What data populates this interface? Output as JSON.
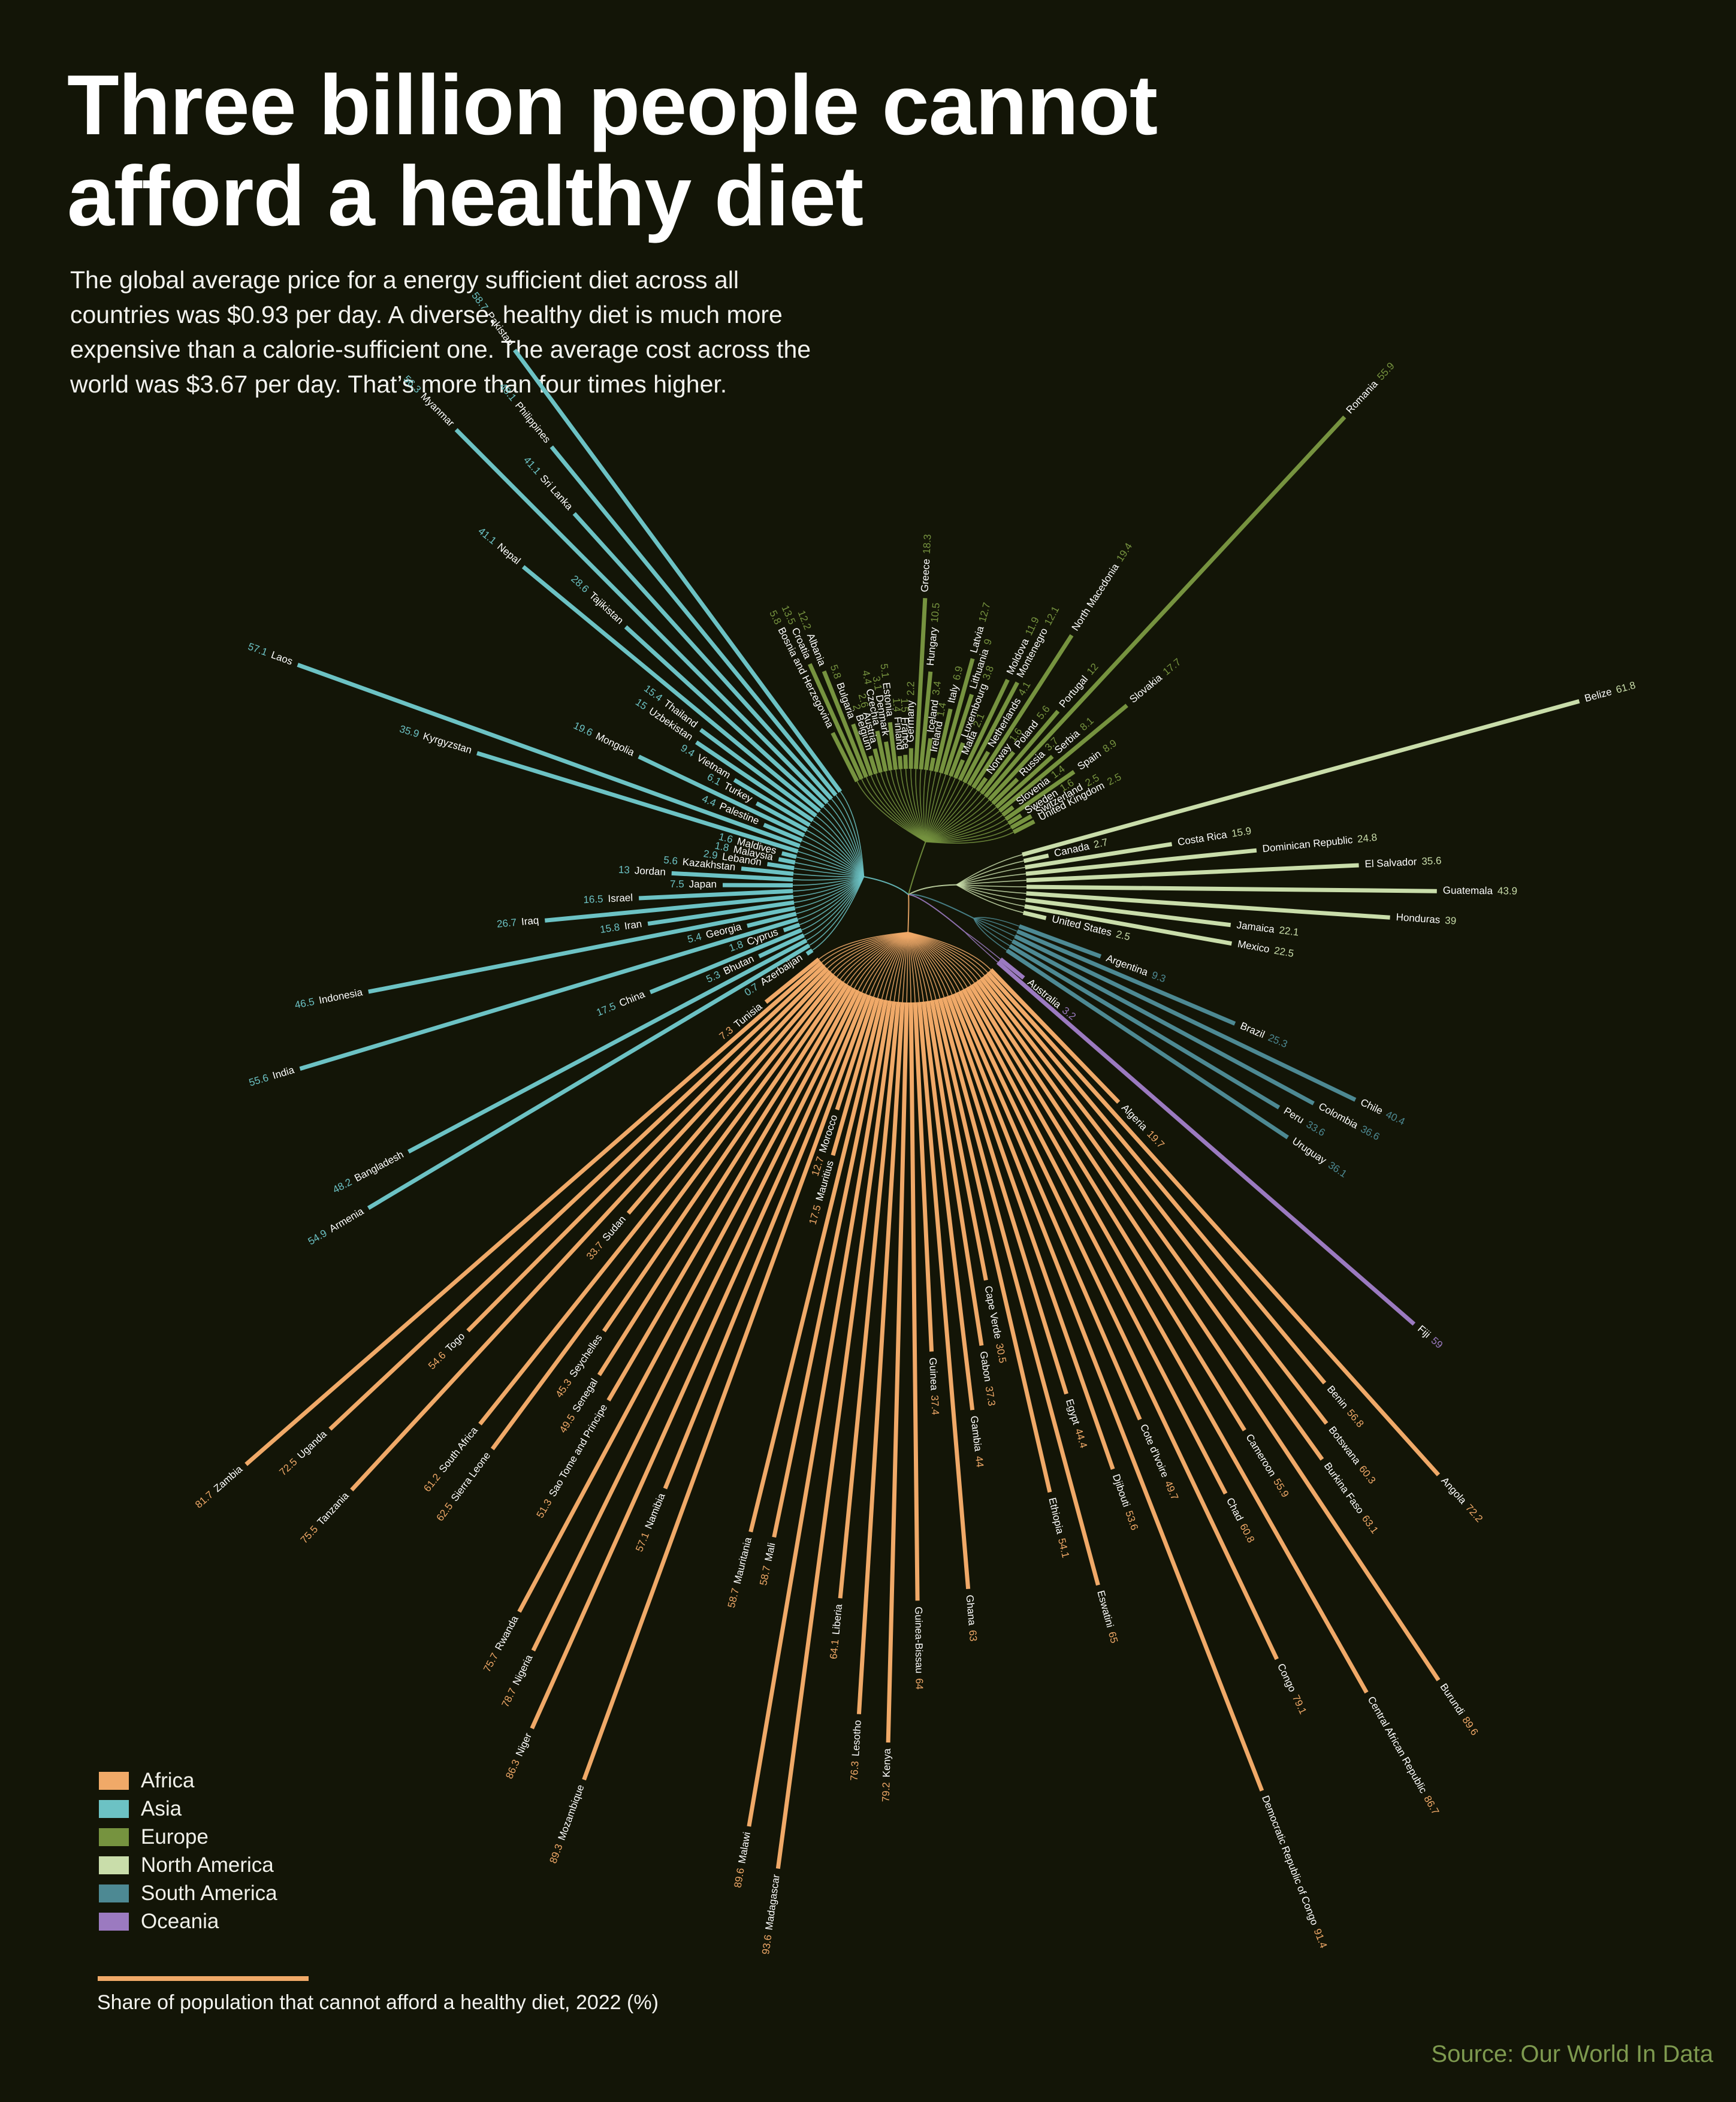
{
  "title": "Three billion people cannot\nafford a healthy diet",
  "subtitle": "The global average price for a energy sufficient diet across all countries was $0.93 per day. A diverse, healthy diet is much more expensive than a calorie-sufficient one. The  average cost across the world was $3.67 per day. That’s more than four times higher.",
  "source": "Source: Our World In Data",
  "colors": {
    "background": "#131507",
    "Africa": "#f0a968",
    "Asia": "#6cc2c4",
    "Europe": "#76933f",
    "North America": "#c9ddaa",
    "South America": "#4d8993",
    "Oceania": "#9b7ac0"
  },
  "legend": [
    "Africa",
    "Asia",
    "Europe",
    "North America",
    "South America",
    "Oceania"
  ],
  "measure_caption": "Share of population that cannot afford a healthy diet, 2022 (%)",
  "chart_data": {
    "type": "radial bar",
    "value_label": "Share of population that cannot afford a healthy diet, 2022 (%)",
    "groups": [
      {
        "name": "Europe",
        "countries": [
          [
            "Bosnia and Herzegovina",
            5.8
          ],
          [
            "Croatia",
            13.5
          ],
          [
            "Albania",
            12.2
          ],
          [
            "Bulgaria",
            5.8
          ],
          [
            "Belgium",
            2
          ],
          [
            "Austria",
            2.6
          ],
          [
            "Czechia",
            4.4
          ],
          [
            "Denmark",
            3.1
          ],
          [
            "Estonia",
            5.1
          ],
          [
            "Finland",
            1.4
          ],
          [
            "France",
            1.5
          ],
          [
            "Germany",
            2.2
          ],
          [
            "Greece",
            18.3
          ],
          [
            "Hungary",
            10.5
          ],
          [
            "Iceland",
            3.4
          ],
          [
            "Ireland",
            1.4
          ],
          [
            "Italy",
            6.9
          ],
          [
            "Latvia",
            12.7
          ],
          [
            "Lithuania",
            9
          ],
          [
            "Luxembourg",
            3.8
          ],
          [
            "Malta",
            2.1
          ],
          [
            "Moldova",
            11.9
          ],
          [
            "Montenegro",
            12.1
          ],
          [
            "Netherlands",
            4.1
          ],
          [
            "North Macedonia",
            19.4
          ],
          [
            "Norway",
            1.6
          ],
          [
            "Poland",
            5.6
          ],
          [
            "Portugal",
            12
          ],
          [
            "Romania",
            55.9
          ],
          [
            "Russia",
            3.7
          ],
          [
            "Serbia",
            8.1
          ],
          [
            "Slovakia",
            17.7
          ],
          [
            "Slovenia",
            1.4
          ],
          [
            "Spain",
            8.9
          ],
          [
            "Sweden",
            1.6
          ],
          [
            "Switzerland",
            2.5
          ],
          [
            "United Kingdom",
            2.5
          ]
        ]
      },
      {
        "name": "North America",
        "countries": [
          [
            "Belize",
            61.8
          ],
          [
            "Canada",
            2.7
          ],
          [
            "Costa Rica",
            15.9
          ],
          [
            "Dominican Republic",
            24.8
          ],
          [
            "El Salvador",
            35.6
          ],
          [
            "Guatemala",
            43.9
          ],
          [
            "Honduras",
            39
          ],
          [
            "Jamaica",
            22.1
          ],
          [
            "Mexico",
            22.5
          ],
          [
            "United States",
            2.5
          ]
        ]
      },
      {
        "name": "South America",
        "countries": [
          [
            "Argentina",
            9.3
          ],
          [
            "Brazil",
            25.3
          ],
          [
            "Chile",
            40.4
          ],
          [
            "Colombia",
            36.6
          ],
          [
            "Peru",
            33.6
          ],
          [
            "Uruguay",
            36.1
          ]
        ]
      },
      {
        "name": "Oceania",
        "countries": [
          [
            "Australia",
            3.2
          ],
          [
            "Fiji",
            59
          ]
        ]
      },
      {
        "name": "Africa",
        "countries": [
          [
            "Algeria",
            19.7
          ],
          [
            "Angola",
            72.2
          ],
          [
            "Benin",
            56.8
          ],
          [
            "Botswana",
            60.3
          ],
          [
            "Burkina Faso",
            63.1
          ],
          [
            "Burundi",
            89.6
          ],
          [
            "Cameroon",
            55.9
          ],
          [
            "Central African Republic",
            86.7
          ],
          [
            "Chad",
            60.8
          ],
          [
            "Congo",
            79.1
          ],
          [
            "Cote d'Ivoire",
            49.7
          ],
          [
            "Democratic Republic of Congo",
            91.4
          ],
          [
            "Djibouti",
            53.6
          ],
          [
            "Egypt",
            44.4
          ],
          [
            "Eswatini",
            65
          ],
          [
            "Ethiopia",
            54.1
          ],
          [
            "Cape Verde",
            30.5
          ],
          [
            "Gabon",
            37.3
          ],
          [
            "Gambia",
            44
          ],
          [
            "Ghana",
            63
          ],
          [
            "Guinea",
            37.4
          ],
          [
            "Guinea-Bissau",
            64
          ],
          [
            "Kenya",
            79.2
          ],
          [
            "Lesotho",
            76.3
          ],
          [
            "Liberia",
            64.1
          ],
          [
            "Madagascar",
            93.6
          ],
          [
            "Malawi",
            89.6
          ],
          [
            "Mali",
            58.7
          ],
          [
            "Mauritania",
            58.7
          ],
          [
            "Mauritius",
            17.5
          ],
          [
            "Morocco",
            12.7
          ],
          [
            "Mozambique",
            89.3
          ],
          [
            "Namibia",
            57.1
          ],
          [
            "Niger",
            86.3
          ],
          [
            "Nigeria",
            78.7
          ],
          [
            "Rwanda",
            75.7
          ],
          [
            "Sao Tome and Principe",
            51.3
          ],
          [
            "Senegal",
            49.5
          ],
          [
            "Seychelles",
            45.3
          ],
          [
            "Sierra Leone",
            62.5
          ],
          [
            "South Africa",
            61.2
          ],
          [
            "Sudan",
            33.7
          ],
          [
            "Tanzania",
            75.5
          ],
          [
            "Togo",
            54.6
          ],
          [
            "Uganda",
            72.5
          ],
          [
            "Zambia",
            81.7
          ],
          [
            "Tunisia",
            7.3
          ]
        ]
      },
      {
        "name": "Asia",
        "countries": [
          [
            "Azerbaijan",
            0.7
          ],
          [
            "Armenia",
            54.9
          ],
          [
            "Bangladesh",
            48.2
          ],
          [
            "Bhutan",
            5.3
          ],
          [
            "China",
            17.5
          ],
          [
            "Cyprus",
            1.8
          ],
          [
            "India",
            55.6
          ],
          [
            "Georgia",
            5.4
          ],
          [
            "Indonesia",
            46.5
          ],
          [
            "Iran",
            15.8
          ],
          [
            "Iraq",
            26.7
          ],
          [
            "Israel",
            16.5
          ],
          [
            "Japan",
            7.5
          ],
          [
            "Jordan",
            13
          ],
          [
            "Kazakhstan",
            5.6
          ],
          [
            "Lebanon",
            2.9
          ],
          [
            "Malaysia",
            1.8
          ],
          [
            "Maldives",
            1.6
          ],
          [
            "Kyrgyzstan",
            35.9
          ],
          [
            "Laos",
            57.1
          ],
          [
            "Palestine",
            4.4
          ],
          [
            "Mongolia",
            19.6
          ],
          [
            "Turkey",
            6.1
          ],
          [
            "Vietnam",
            9.4
          ],
          [
            "Uzbekistan",
            15
          ],
          [
            "Thailand",
            15.4
          ],
          [
            "Nepal",
            41.1
          ],
          [
            "Tajikistan",
            28.6
          ],
          [
            "Myanmar",
            56.3
          ],
          [
            "Sri Lanka",
            41.1
          ],
          [
            "Philippines",
            48.1
          ],
          [
            "Pakistan",
            58.7
          ]
        ]
      }
    ]
  }
}
